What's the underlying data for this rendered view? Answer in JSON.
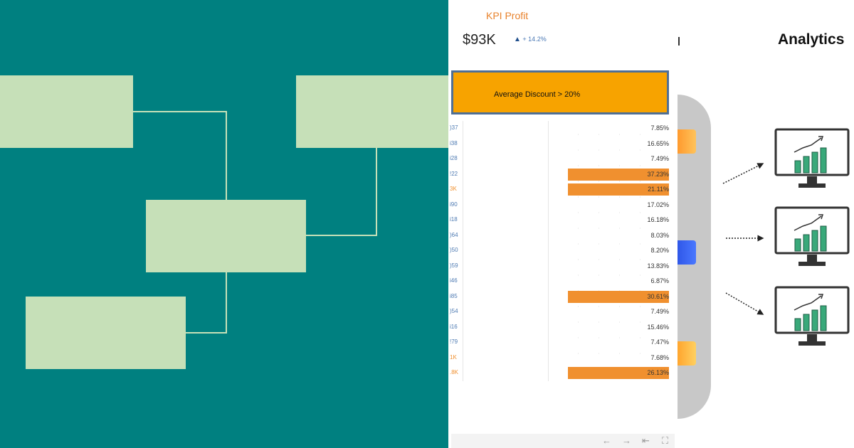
{
  "dashboard": {
    "kpi_title": "KPI Profit",
    "kpi_value": "$93K",
    "kpi_delta": "+ 14.2%",
    "alert_text": "Average Discount > 20%",
    "rows": [
      {
        "id": ")37",
        "pct": "7.85%",
        "highlight": false,
        "id_orange": false
      },
      {
        "id": "i38",
        "pct": "16.65%",
        "highlight": false,
        "id_orange": false
      },
      {
        "id": "i28",
        "pct": "7.49%",
        "highlight": false,
        "id_orange": false
      },
      {
        "id": "!22",
        "pct": "37.23%",
        "highlight": true,
        "id_orange": false
      },
      {
        "id": "3K",
        "pct": "21.11%",
        "highlight": true,
        "id_orange": true
      },
      {
        "id": "i90",
        "pct": "17.02%",
        "highlight": false,
        "id_orange": false
      },
      {
        "id": "i18",
        "pct": "16.18%",
        "highlight": false,
        "id_orange": false
      },
      {
        "id": ")64",
        "pct": "8.03%",
        "highlight": false,
        "id_orange": false
      },
      {
        "id": ")50",
        "pct": "8.20%",
        "highlight": false,
        "id_orange": false
      },
      {
        "id": ")59",
        "pct": "13.83%",
        "highlight": false,
        "id_orange": false
      },
      {
        "id": "i46",
        "pct": "6.87%",
        "highlight": false,
        "id_orange": false
      },
      {
        "id": "i85",
        "pct": "30.61%",
        "highlight": true,
        "id_orange": false
      },
      {
        "id": ")54",
        "pct": "7.49%",
        "highlight": false,
        "id_orange": false
      },
      {
        "id": "i16",
        "pct": "15.46%",
        "highlight": false,
        "id_orange": false
      },
      {
        "id": "!79",
        "pct": "7.47%",
        "highlight": false,
        "id_orange": false
      },
      {
        "id": "1K",
        "pct": "7.68%",
        "highlight": false,
        "id_orange": true
      },
      {
        "id": ".8K",
        "pct": "26.13%",
        "highlight": true,
        "id_orange": true
      }
    ]
  },
  "nav": {
    "back_icon": "←",
    "forward_icon": "→",
    "first_icon": "⇤",
    "fullscreen_icon": "⛶"
  },
  "analytics": {
    "title": "Analytics"
  },
  "colors": {
    "teal": "#008080",
    "flow_box": "#c6e0b8",
    "highlight_orange": "#f0902f",
    "banner_orange": "#f7a300",
    "kpi_orange": "#e8822b"
  }
}
